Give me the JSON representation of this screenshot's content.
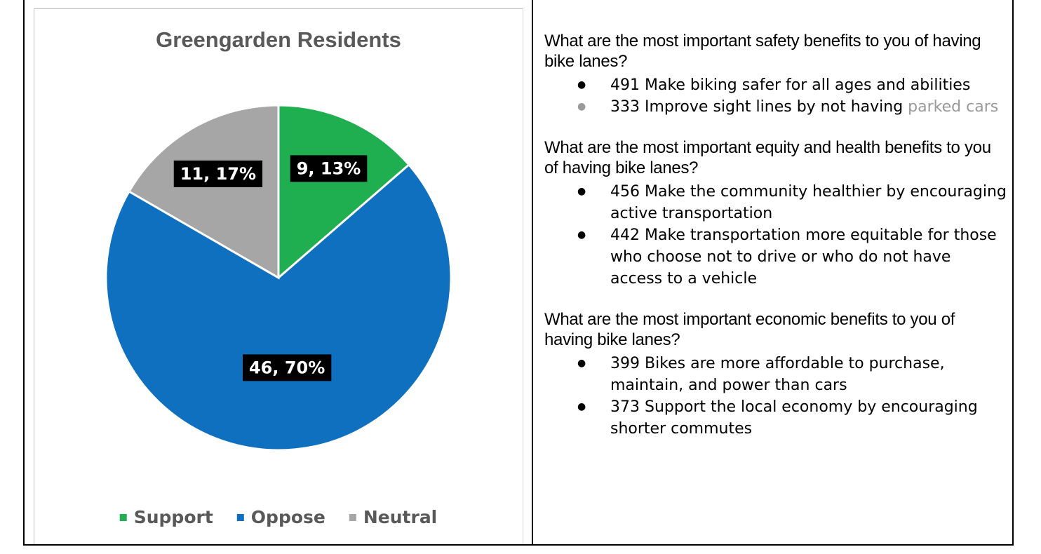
{
  "chart_data": {
    "type": "pie",
    "title": "Greengarden Residents",
    "slices": [
      {
        "name": "Support",
        "value": 9,
        "percent": 13,
        "label": "9, 13%",
        "color": "#1faf50"
      },
      {
        "name": "Oppose",
        "value": 46,
        "percent": 70,
        "label": "46, 70%",
        "color": "#1070c0"
      },
      {
        "name": "Neutral",
        "value": 11,
        "percent": 17,
        "label": "11, 17%",
        "color": "#a6a6a6"
      }
    ],
    "legend_position": "bottom",
    "data_label_style": {
      "background": "#000000",
      "color": "#ffffff"
    }
  },
  "panel": {
    "sections": [
      {
        "question": "What are the most important safety benefits to you of having bike lanes?",
        "answers": [
          {
            "text": "491 Make biking safer for all ages and abilities"
          },
          {
            "text": "333 Improve sight lines by not having",
            "faded": "parked cars"
          }
        ]
      },
      {
        "question": "What are the most important equity and health benefits to you of having bike lanes?",
        "answers": [
          {
            "text": "456 Make the community healthier by encouraging active transportation"
          },
          {
            "text": "442 Make transportation more equitable for those who choose not to drive or who do not have access to a vehicle"
          }
        ]
      },
      {
        "question": "What are the most important economic benefits to you of having bike lanes?",
        "answers": [
          {
            "text": "399 Bikes are more affordable to purchase, maintain, and power than cars"
          },
          {
            "text": "373 Support the local economy by encouraging shorter commutes"
          }
        ]
      }
    ]
  }
}
